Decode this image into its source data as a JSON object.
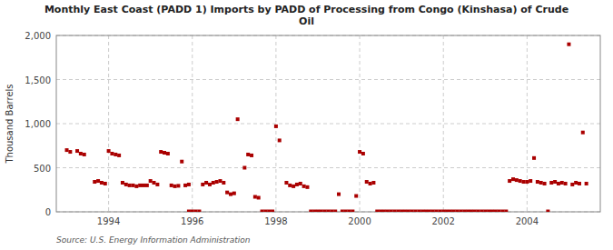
{
  "chart_data": {
    "type": "scatter",
    "title": "Monthly East Coast (PADD 1) Imports by PADD of Processing from Congo (Kinshasa) of Crude\nOil",
    "y_label": "Thousand Barrels",
    "source": "Source: U.S. Energy Information Administration",
    "color": "#aa0000",
    "marker": "square",
    "grid": true,
    "xlim": [
      1992.75,
      2005.75
    ],
    "xticks": [
      1994,
      1996,
      1998,
      2000,
      2002,
      2004
    ],
    "ylim": [
      0,
      2000
    ],
    "yticks": [
      0,
      500,
      {
        "value": 1000,
        "label": "1,000"
      },
      {
        "value": 1500,
        "label": "1,500"
      },
      {
        "value": 2000,
        "label": "2,000"
      }
    ],
    "x": [
      1993.0,
      1993.083,
      1993.25,
      1993.333,
      1993.417,
      1993.667,
      1993.75,
      1993.833,
      1993.917,
      1994.0,
      1994.083,
      1994.167,
      1994.25,
      1994.333,
      1994.417,
      1994.5,
      1994.583,
      1994.667,
      1994.75,
      1994.833,
      1994.917,
      1995.0,
      1995.083,
      1995.167,
      1995.25,
      1995.333,
      1995.417,
      1995.5,
      1995.583,
      1995.667,
      1995.75,
      1995.833,
      1995.917,
      1995.917,
      1996.0,
      1996.083,
      1996.167,
      1996.25,
      1996.333,
      1996.417,
      1996.5,
      1996.583,
      1996.667,
      1996.75,
      1996.833,
      1996.917,
      1997.0,
      1997.083,
      1997.25,
      1997.333,
      1997.417,
      1997.5,
      1997.583,
      1997.667,
      1997.75,
      1997.833,
      1997.917,
      1998.0,
      1998.083,
      1998.25,
      1998.333,
      1998.417,
      1998.5,
      1998.583,
      1998.667,
      1998.75,
      1998.833,
      1998.917,
      1999.0,
      1999.083,
      1999.167,
      1999.25,
      1999.333,
      1999.417,
      1999.5,
      1999.583,
      1999.667,
      1999.75,
      1999.833,
      1999.917,
      2000.0,
      2000.083,
      2000.167,
      2000.25,
      2000.333,
      2000.417,
      2000.5,
      2000.583,
      2000.667,
      2000.75,
      2000.833,
      2000.917,
      2001.0,
      2001.083,
      2001.167,
      2001.25,
      2001.333,
      2001.417,
      2001.5,
      2001.583,
      2001.667,
      2001.75,
      2001.833,
      2001.917,
      2002.0,
      2002.083,
      2002.167,
      2002.25,
      2002.333,
      2002.417,
      2002.5,
      2002.583,
      2002.667,
      2002.75,
      2002.833,
      2002.917,
      2003.0,
      2003.083,
      2003.167,
      2003.25,
      2003.333,
      2003.417,
      2003.5,
      2003.583,
      2003.667,
      2003.75,
      2003.833,
      2003.917,
      2004.0,
      2004.083,
      2004.167,
      2004.25,
      2004.333,
      2004.417,
      2004.5,
      2004.583,
      2004.667,
      2004.75,
      2004.833,
      2004.917,
      2005.0,
      2005.083,
      2005.167,
      2005.25,
      2005.333,
      2005.417
    ],
    "values": [
      700,
      680,
      690,
      660,
      650,
      340,
      350,
      330,
      320,
      690,
      660,
      650,
      640,
      330,
      310,
      300,
      300,
      290,
      300,
      300,
      300,
      350,
      330,
      310,
      680,
      670,
      660,
      300,
      290,
      295,
      570,
      300,
      310,
      5,
      5,
      5,
      5,
      310,
      330,
      310,
      330,
      340,
      350,
      330,
      220,
      200,
      210,
      1050,
      500,
      650,
      640,
      170,
      160,
      5,
      5,
      5,
      5,
      970,
      810,
      330,
      300,
      290,
      310,
      320,
      290,
      280,
      5,
      5,
      5,
      5,
      5,
      5,
      5,
      5,
      200,
      5,
      5,
      5,
      5,
      180,
      680,
      660,
      340,
      320,
      330,
      5,
      5,
      5,
      5,
      5,
      5,
      5,
      5,
      5,
      5,
      5,
      5,
      5,
      5,
      5,
      5,
      5,
      5,
      5,
      5,
      5,
      5,
      5,
      5,
      5,
      5,
      5,
      5,
      5,
      5,
      5,
      5,
      5,
      5,
      5,
      5,
      5,
      5,
      350,
      370,
      360,
      350,
      340,
      340,
      350,
      610,
      340,
      330,
      320,
      5,
      330,
      340,
      320,
      330,
      320,
      1900,
      310,
      330,
      320,
      900,
      320
    ]
  }
}
